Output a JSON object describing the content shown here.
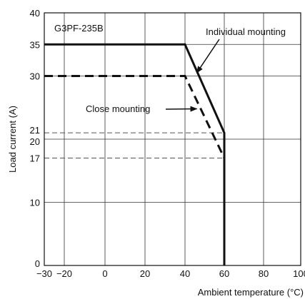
{
  "chart_data": {
    "type": "line",
    "title": "G3PF-235B",
    "xlabel": "Ambient temperature (°C)",
    "ylabel": "Load current (A)",
    "xlim": [
      -30,
      100
    ],
    "ylim": [
      0,
      40
    ],
    "x_ticks": [
      {
        "value": -30,
        "label": "−30"
      },
      {
        "value": -20,
        "label": "−20"
      },
      {
        "value": 0,
        "label": "0"
      },
      {
        "value": 20,
        "label": "20"
      },
      {
        "value": 40,
        "label": "40"
      },
      {
        "value": 60,
        "label": "60"
      },
      {
        "value": 80,
        "label": "80"
      },
      {
        "value": 100,
        "label": "100"
      }
    ],
    "y_ticks": [
      {
        "value": 0,
        "label": "0"
      },
      {
        "value": 10,
        "label": "10"
      },
      {
        "value": 17,
        "label": "17"
      },
      {
        "value": 20,
        "label": "20"
      },
      {
        "value": 21,
        "label": "21"
      },
      {
        "value": 30,
        "label": "30"
      },
      {
        "value": 35,
        "label": "35"
      },
      {
        "value": 40,
        "label": "40"
      }
    ],
    "x_grid": [
      -20,
      0,
      20,
      40,
      60,
      80
    ],
    "y_grid": [
      10,
      20,
      30,
      35
    ],
    "reference_lines": [
      {
        "y": 21,
        "x_end": 60
      },
      {
        "y": 17,
        "x_end": 60
      }
    ],
    "series": [
      {
        "name": "Individual mounting",
        "style": "solid",
        "x": [
          -30,
          40,
          60,
          60
        ],
        "y": [
          35,
          35,
          21,
          0
        ]
      },
      {
        "name": "Close mounting",
        "style": "dashed",
        "x": [
          -30,
          40,
          60
        ],
        "y": [
          30,
          30,
          17
        ]
      }
    ],
    "annotations": [
      {
        "text": "Individual mounting",
        "arrow_to": {
          "x": 46,
          "y": 30.5
        }
      },
      {
        "text": "Close mounting",
        "arrow_to": {
          "x": 46,
          "y": 24.8
        }
      }
    ],
    "colors": {
      "line": "#111111",
      "grid": "#333333",
      "reference": "#555555"
    }
  }
}
